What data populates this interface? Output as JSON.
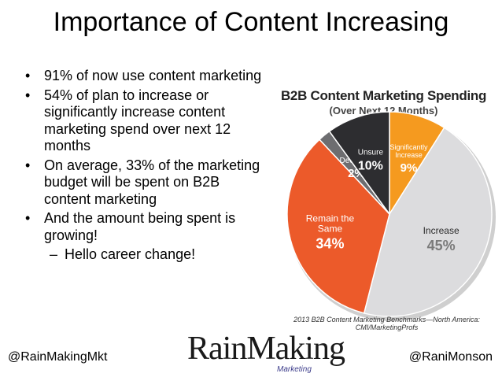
{
  "slide": {
    "title": "Importance of Content Increasing",
    "bullets": [
      "91% of now use content marketing",
      "54% of plan to increase or significantly increase content marketing spend over next 12 months",
      "On average, 33% of the marketing budget will be spent on B2B content marketing",
      "And the amount being spent is growing!"
    ],
    "sub_bullet": "Hello career change!"
  },
  "footer": {
    "left": "@RainMakingMkt",
    "right": "@RaniMonson",
    "logo_text": "RainMaking",
    "logo_sub": "Marketing"
  },
  "chart_data": {
    "type": "pie",
    "title": "B2B Content Marketing Spending",
    "subtitle": "(Over Next 12 Months)",
    "source": "2013 B2B Content Marketing Benchmarks—North America: CMI/MarketingProfs",
    "slices": [
      {
        "label": "Significantly Increase",
        "value": 9,
        "value_label": "9%",
        "color": "#f59a1f"
      },
      {
        "label": "Increase",
        "value": 45,
        "value_label": "45%",
        "color": "#dcdcde"
      },
      {
        "label": "Remain the Same",
        "value": 34,
        "value_label": "34%",
        "color": "#ec5a2a"
      },
      {
        "label": "Decrease",
        "value": 2,
        "value_label": "2%",
        "color": "#6d6d70"
      },
      {
        "label": "Unsure",
        "value": 10,
        "value_label": "10%",
        "color": "#2d2d30"
      }
    ]
  }
}
